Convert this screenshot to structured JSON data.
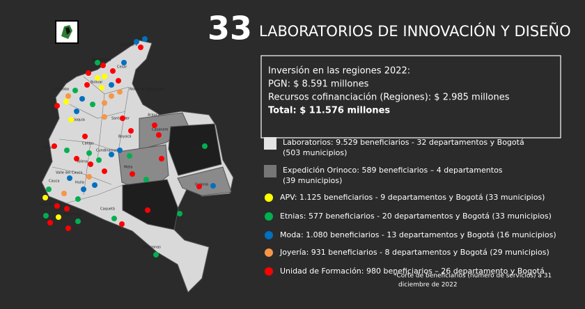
{
  "header": {
    "number": "33",
    "title": "LABORATORIOS DE INNOVACIÓN Y DISEÑO"
  },
  "investment": {
    "lines": [
      "Inversión en las regiones 2022:",
      "PGN: $ 8.591 millones",
      "Recursos cofinanciación (Regiones): $ 2.985 millones"
    ],
    "total": "Total: $ 11.576  millones"
  },
  "legend": [
    {
      "shape": "square",
      "color": "#e3e3e3",
      "lines": [
        "Laboratorios: 9.529 beneficiarios - 32 departamentos y  Bogotá",
        "(503 municipios)"
      ]
    },
    {
      "shape": "square",
      "color": "#767676",
      "lines": [
        "Expedición Orinoco:  589 beneficiarios – 4 departamentos",
        " (39 municipios)"
      ]
    },
    {
      "shape": "circle",
      "color": "#ffff00",
      "lines": [
        "APV: 1.125 beneficiarios - 9 departamentos y Bogotá  (33 municipios)"
      ]
    },
    {
      "shape": "circle",
      "color": "#00b050",
      "lines": [
        "Etnias: 577 beneficiarios - 20 departamentos y Bogotá (33 municipios)"
      ]
    },
    {
      "shape": "circle",
      "color": "#0070c0",
      "lines": [
        " Moda: 1.080 beneficiarios - 13 departamentos  y Bogotá (16 municipios)"
      ]
    },
    {
      "shape": "circle",
      "color": "#f79646",
      "lines": [
        "Joyería: 931 beneficiarios - 8 departamentos y Bogotá (29 municipios)"
      ]
    },
    {
      "shape": "circle",
      "color": "#ff0000",
      "lines": [
        "Unidad de Formación:  980 beneficiarios – 26 departamento y Bogotá"
      ]
    }
  ],
  "footnote": [
    "*Corte de beneficiarios (número de servicios) a 31",
    "diciembre de 2022"
  ],
  "map_labels": [
    "La Guajira",
    "Magdalena",
    "Cesar",
    "Córdoba",
    "Bolívar",
    "Norte de Santander",
    "Antioquia",
    "Santander",
    "Arauca",
    "Casanare",
    "Chocó",
    "Boyacá",
    "Caldas",
    "Cundinamarca",
    "Tolima",
    "Valle del Cauca",
    "Cauca",
    "Huila",
    "Nariño",
    "Putumayo",
    "Meta",
    "Vichada",
    "Guainía",
    "Guaviare",
    "Vaupés",
    "Caquetá",
    "Amazonas"
  ]
}
